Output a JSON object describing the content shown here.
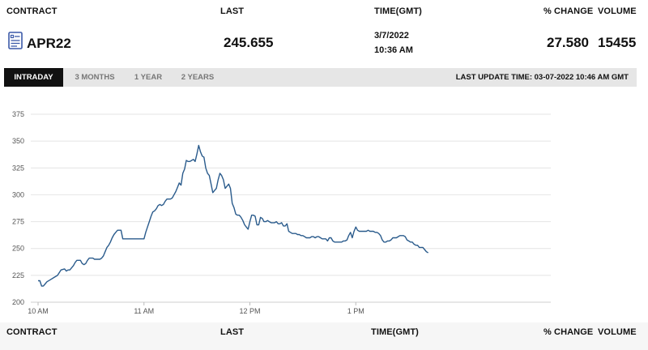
{
  "header": {
    "contract": "CONTRACT",
    "last": "LAST",
    "time": "TIME(GMT)",
    "pct_change": "% CHANGE",
    "volume": "VOLUME"
  },
  "row": {
    "contract": "APR22",
    "last": "245.655",
    "date": "3/7/2022",
    "time": "10:36 AM",
    "pct_change": "27.580",
    "volume": "15455",
    "icon": "document-list-icon"
  },
  "tabs": [
    {
      "label": "INTRADAY",
      "active": true
    },
    {
      "label": "3 MONTHS",
      "active": false
    },
    {
      "label": "1 YEAR",
      "active": false
    },
    {
      "label": "2 YEARS",
      "active": false
    }
  ],
  "last_update": "LAST UPDATE TIME: 03-07-2022 10:46 AM GMT",
  "footer_header": {
    "contract": "CONTRACT",
    "last": "LAST",
    "time": "TIME(GMT)",
    "pct_change": "% CHANGE",
    "volume": "VOLUME"
  },
  "colors": {
    "line": "#2a5b8c",
    "grid": "#e4e4e4",
    "tab_active_bg": "#111111",
    "tabbar_bg": "#e6e6e6"
  },
  "chart_data": {
    "type": "line",
    "title": "",
    "xlabel": "",
    "ylabel": "",
    "ylim": [
      200,
      375
    ],
    "yticks": [
      200,
      225,
      250,
      275,
      300,
      325,
      350,
      375
    ],
    "xlim_minutes": [
      0,
      240
    ],
    "xticks": [
      {
        "label": "10 AM",
        "minutes": 0
      },
      {
        "label": "11 AM",
        "minutes": 60
      },
      {
        "label": "12 PM",
        "minutes": 120
      },
      {
        "label": "1 PM",
        "minutes": 180
      }
    ],
    "grid": true,
    "series": [
      {
        "values_x_minutes": [
          0,
          1,
          2,
          3,
          4,
          5,
          7,
          9,
          11,
          13,
          15,
          16,
          17,
          18,
          19,
          20,
          21,
          22,
          23,
          24,
          25,
          26,
          27,
          28,
          29,
          30,
          31,
          32,
          33,
          34,
          35,
          36,
          37,
          38,
          39,
          40,
          41,
          42,
          43,
          44,
          45,
          46,
          47,
          48,
          49,
          50,
          51,
          52,
          53,
          54,
          55,
          56,
          57,
          58,
          59,
          60,
          61,
          62,
          63,
          64,
          65,
          66,
          67,
          68,
          69,
          70,
          71,
          72,
          73,
          74,
          75,
          76,
          77,
          78,
          79,
          80,
          81,
          82,
          83,
          84,
          85,
          86,
          87,
          88,
          89,
          90,
          91,
          92,
          93,
          94,
          95,
          96,
          97,
          98,
          99,
          100,
          101,
          102,
          103,
          104,
          105,
          106,
          107,
          108,
          109,
          110,
          111,
          112,
          113,
          114,
          115,
          116,
          117,
          118,
          119,
          120,
          121,
          122,
          123,
          124,
          125,
          126,
          127,
          128,
          129,
          130,
          131,
          132,
          133,
          134,
          135,
          136,
          137,
          138,
          139,
          140,
          141,
          142,
          143,
          144,
          145,
          146,
          147,
          148,
          149,
          150,
          151,
          152,
          153,
          154,
          155,
          156,
          157,
          158,
          159,
          160,
          161,
          162,
          163,
          164,
          165,
          166,
          167,
          168,
          169,
          170,
          171,
          172,
          173,
          174,
          175,
          176,
          177,
          178,
          179,
          180,
          181,
          182,
          183,
          184,
          185,
          186,
          187,
          188,
          189,
          190,
          191,
          192,
          193,
          194,
          195,
          196,
          197,
          198,
          199,
          200,
          201,
          202,
          203,
          204,
          205,
          206,
          207,
          208,
          209,
          210,
          211,
          212,
          213,
          214,
          215,
          216,
          217,
          218,
          219,
          220,
          221,
          222,
          223,
          224,
          225,
          226,
          227,
          228
        ],
        "values_y": [
          220,
          220,
          215,
          215,
          217,
          219,
          221,
          223,
          225,
          230,
          231,
          229,
          230,
          230,
          232,
          234,
          237,
          239,
          239,
          239,
          236,
          235,
          236,
          239,
          241,
          241,
          241,
          240,
          240,
          240,
          240,
          241,
          243,
          247,
          251,
          253,
          256,
          260,
          263,
          265,
          267,
          267,
          267,
          259,
          259,
          259,
          259,
          259,
          259,
          259,
          259,
          259,
          259,
          259,
          259,
          259,
          265,
          270,
          275,
          280,
          284,
          285,
          287,
          290,
          291,
          290,
          291,
          294,
          296,
          296,
          296,
          297,
          300,
          303,
          307,
          311,
          309,
          320,
          324,
          332,
          331,
          331,
          332,
          333,
          331,
          338,
          346,
          340,
          336,
          335,
          325,
          320,
          318,
          310,
          302,
          304,
          306,
          314,
          320,
          318,
          314,
          306,
          308,
          310,
          306,
          292,
          288,
          282,
          281,
          281,
          279,
          276,
          272,
          270,
          268,
          275,
          281,
          281,
          280,
          272,
          272,
          279,
          278,
          275,
          275,
          276,
          275,
          274,
          274,
          274,
          275,
          273,
          273,
          274,
          271,
          271,
          273,
          266,
          265,
          264,
          264,
          264,
          263,
          263,
          262,
          262,
          261,
          260,
          260,
          260,
          261,
          261,
          260,
          261,
          261,
          260,
          259,
          259,
          259,
          257,
          260,
          260,
          257,
          256,
          256,
          256,
          256,
          256,
          257,
          257,
          258,
          262,
          265,
          260,
          266,
          270,
          267,
          266,
          266,
          266,
          266,
          266,
          267,
          266,
          266,
          266,
          265,
          265,
          264,
          262,
          258,
          256,
          256,
          257,
          257,
          258,
          260,
          260,
          260,
          261,
          262,
          262,
          262,
          261,
          258,
          257,
          256,
          256,
          254,
          253,
          253,
          251,
          251,
          251,
          249,
          247,
          246
        ]
      }
    ]
  }
}
